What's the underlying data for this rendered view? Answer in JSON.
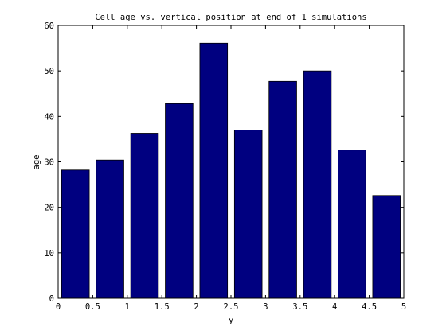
{
  "chart_data": {
    "type": "bar",
    "title": "Cell age vs. vertical position at end of 1 simulations",
    "xlabel": "y",
    "ylabel": "age",
    "x": [
      0.25,
      0.75,
      1.25,
      1.75,
      2.25,
      2.75,
      3.25,
      3.75,
      4.25,
      4.75
    ],
    "values": [
      28.2,
      30.4,
      36.3,
      42.8,
      56.1,
      37.0,
      47.7,
      50.0,
      32.6,
      22.6
    ],
    "xlim": [
      0,
      5
    ],
    "ylim": [
      0,
      60
    ],
    "xticks": [
      0,
      0.5,
      1,
      1.5,
      2,
      2.5,
      3,
      3.5,
      4,
      4.5,
      5
    ],
    "xtick_labels": [
      "0",
      "0.5",
      "1",
      "1.5",
      "2",
      "2.5",
      "3",
      "3.5",
      "4",
      "4.5",
      "5"
    ],
    "yticks": [
      0,
      10,
      20,
      30,
      40,
      50,
      60
    ],
    "ytick_labels": [
      "0",
      "10",
      "20",
      "30",
      "40",
      "50",
      "60"
    ],
    "bar_width": 0.4,
    "bar_color": "#000080",
    "bar_edge_color": "#000000",
    "grid": false,
    "legend": null
  }
}
